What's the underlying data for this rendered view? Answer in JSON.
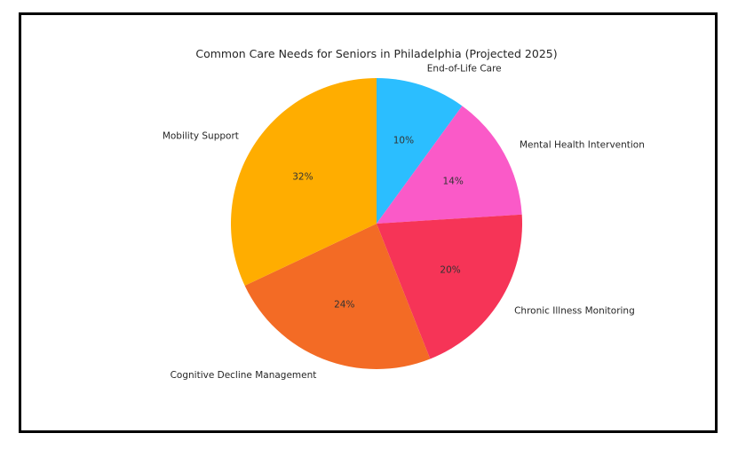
{
  "chart_data": {
    "type": "pie",
    "title": "Common Care Needs for Seniors in Philadelphia (Projected 2025)",
    "slices": [
      {
        "label": "End-of-Life Care",
        "value": 10,
        "pct_label": "10%",
        "color": "#2BBEFF"
      },
      {
        "label": "Mental Health Intervention",
        "value": 14,
        "pct_label": "14%",
        "color": "#FA5AC8"
      },
      {
        "label": "Chronic Illness Monitoring",
        "value": 20,
        "pct_label": "20%",
        "color": "#F63457"
      },
      {
        "label": "Cognitive Decline Management",
        "value": 24,
        "pct_label": "24%",
        "color": "#F36B25"
      },
      {
        "label": "Mobility Support",
        "value": 32,
        "pct_label": "32%",
        "color": "#FFAD00"
      }
    ],
    "start_angle_deg": 90,
    "direction": "clockwise",
    "legend": "none"
  }
}
